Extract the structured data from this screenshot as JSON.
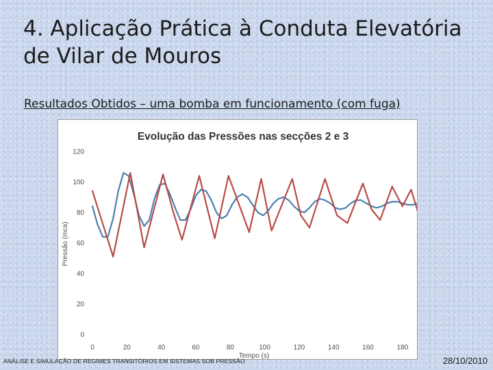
{
  "slide": {
    "title": "4. Aplicação Prática à Conduta Elevatória de Vilar de Mouros",
    "subtitle": "Resultados Obtidos – uma bomba em funcionamento (com fuga)"
  },
  "footer": {
    "left": "ANÁLISE E SIMULAÇÃO DE REGIMES TRANSITÓRIOS EM SISTEMAS SOB PRESSÃO",
    "right": "28/10/2010"
  },
  "colors": {
    "series_blue": "#4a7fae",
    "series_red": "#b84a47",
    "title": "#333333",
    "axis_text": "#4d4d4d"
  },
  "chart_data": {
    "type": "line",
    "title": "Evolução das Pressões nas secções 2 e 3",
    "xlabel": "Tempo (s)",
    "ylabel": "Pressão (mca)",
    "xlim": [
      0,
      190
    ],
    "ylim": [
      0,
      120
    ],
    "xticks": [
      "0",
      "20",
      "40",
      "60",
      "80",
      "100",
      "120",
      "140",
      "160",
      "180"
    ],
    "yticks": [
      "0",
      "20",
      "40",
      "60",
      "80",
      "100",
      "120"
    ],
    "grid": false,
    "legend": "none",
    "series": [
      {
        "color": "#4a7fae",
        "x": [
          0,
          3,
          6,
          9,
          12,
          15,
          18,
          21,
          24,
          27,
          30,
          33,
          36,
          39,
          42,
          45,
          48,
          51,
          54,
          57,
          60,
          63,
          66,
          69,
          72,
          75,
          78,
          81,
          84,
          87,
          90,
          93,
          96,
          99,
          102,
          105,
          108,
          111,
          114,
          117,
          120,
          123,
          126,
          129,
          132,
          135,
          138,
          141,
          144,
          147,
          150,
          153,
          156,
          159,
          162,
          165,
          168,
          171,
          174,
          177,
          180,
          183,
          186,
          189
        ],
        "values": [
          84,
          72,
          64,
          64,
          76,
          94,
          106,
          104,
          92,
          78,
          71,
          75,
          89,
          98,
          99,
          92,
          83,
          75,
          75,
          82,
          91,
          95,
          94,
          88,
          80,
          76,
          78,
          85,
          90,
          92,
          90,
          85,
          80,
          78,
          81,
          86,
          89,
          90,
          88,
          84,
          81,
          80,
          83,
          87,
          89,
          88,
          86,
          83,
          82,
          83,
          86,
          88,
          88,
          86,
          84,
          83,
          84,
          86,
          87,
          87,
          86,
          85,
          85,
          86
        ]
      },
      {
        "color": "#b84a47",
        "x": [
          0,
          12,
          22,
          30,
          41,
          47,
          52,
          62,
          71,
          79,
          91,
          98,
          104,
          116,
          121,
          126,
          135,
          142,
          148,
          157,
          162,
          167,
          174,
          180,
          185,
          189
        ],
        "values": [
          94,
          51,
          106,
          57,
          105,
          80,
          62,
          104,
          63,
          104,
          67,
          102,
          68,
          102,
          78,
          70,
          102,
          78,
          73,
          99,
          82,
          75,
          97,
          84,
          95,
          80
        ]
      }
    ]
  }
}
